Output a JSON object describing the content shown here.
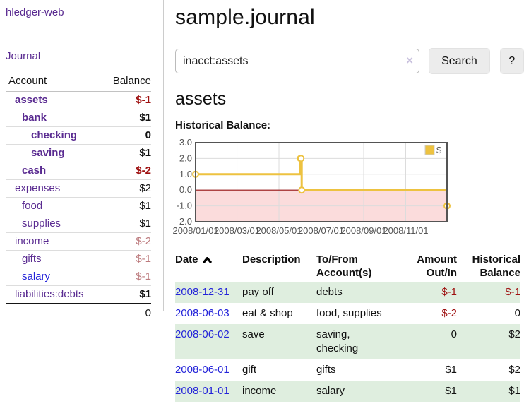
{
  "colors": {
    "purple_link": "#5a2b91",
    "blue_link": "#2323d9",
    "negative_strong": "#9e1010",
    "negative_soft": "#bc7a7d",
    "stripe_green": "#dfeedf",
    "chart_gold": "#edc240"
  },
  "app": {
    "title": "hledger-web",
    "nav_journal": "Journal"
  },
  "sidebar": {
    "header": {
      "account": "Account",
      "balance": "Balance"
    },
    "accounts": [
      {
        "name": "assets",
        "level": 1,
        "bold": true,
        "balance": "$-1",
        "neg": "strong"
      },
      {
        "name": "bank",
        "level": 2,
        "bold": true,
        "balance": "$1"
      },
      {
        "name": "checking",
        "level": 3,
        "bold": true,
        "balance": "0"
      },
      {
        "name": "saving",
        "level": 3,
        "bold": true,
        "balance": "$1"
      },
      {
        "name": "cash",
        "level": 2,
        "bold": true,
        "balance": "$-2",
        "neg": "strong"
      },
      {
        "name": "expenses",
        "level": 1,
        "bold": false,
        "balance": "$2"
      },
      {
        "name": "food",
        "level": 2,
        "bold": false,
        "balance": "$1"
      },
      {
        "name": "supplies",
        "level": 2,
        "bold": false,
        "balance": "$1"
      },
      {
        "name": "income",
        "level": 1,
        "bold": false,
        "balance": "$-2",
        "neg": "soft"
      },
      {
        "name": "gifts",
        "level": 2,
        "bold": false,
        "balance": "$-1",
        "neg": "soft"
      },
      {
        "name": "salary",
        "level": 2,
        "bold": false,
        "balance": "$-1",
        "neg": "soft",
        "link_color": "blue"
      },
      {
        "name": "liabilities:debts",
        "level": 1,
        "bold": false,
        "balance": "$1",
        "balance_bold": true
      }
    ],
    "total": "0"
  },
  "main": {
    "title": "sample.journal",
    "search": {
      "value": "inacct:assets",
      "clear_icon": "×",
      "button_label": "Search",
      "help_label": "?"
    },
    "account_heading": "assets",
    "chart_label": "Historical Balance:"
  },
  "chart_data": {
    "type": "line",
    "step": true,
    "title": "Historical Balance",
    "series": [
      {
        "name": "$",
        "points": [
          [
            "2008-01-01",
            1
          ],
          [
            "2008-06-01",
            2
          ],
          [
            "2008-06-02",
            2
          ],
          [
            "2008-06-03",
            0
          ],
          [
            "2008-12-31",
            -1
          ]
        ]
      }
    ],
    "xlim": [
      "2008-01-01",
      "2008-12-31"
    ],
    "ylim": [
      -2,
      3
    ],
    "ytick_labels": [
      "3.0",
      "2.0",
      "1.0",
      "0.0",
      "-1.0",
      "-2.0"
    ],
    "xticks": [
      {
        "date": "2008-01-01",
        "label": "2008/01/01"
      },
      {
        "date": "2008-03-01",
        "label": "2008/03/01"
      },
      {
        "date": "2008-05-01",
        "label": "2008/05/01"
      },
      {
        "date": "2008-07-01",
        "label": "2008/07/01"
      },
      {
        "date": "2008-09-01",
        "label": "2008/09/01"
      },
      {
        "date": "2008-11-01",
        "label": "2008/11/01"
      }
    ],
    "legend": {
      "label": "$",
      "position": "top-right"
    },
    "grid": true,
    "colors": {
      "line": "#edc240",
      "marker_fill": "#ffffff",
      "negative_region": "#fbdcdc",
      "zero_line": "#991111",
      "border": "#545454",
      "grid": "#dcdcdc",
      "tick_text": "#545454"
    }
  },
  "register": {
    "columns": [
      {
        "lines": [
          "Date"
        ],
        "sort": "asc",
        "align": "left"
      },
      {
        "lines": [
          "Description"
        ],
        "align": "left"
      },
      {
        "lines": [
          "To/From",
          "Account(s)"
        ],
        "align": "left"
      },
      {
        "lines": [
          "Amount",
          "Out/In"
        ],
        "align": "right"
      },
      {
        "lines": [
          "Historical",
          "Balance"
        ],
        "align": "right"
      }
    ],
    "rows": [
      {
        "date": "2008-12-31",
        "description": "pay off",
        "accounts": [
          "debts"
        ],
        "amount": "$-1",
        "amount_neg": true,
        "balance": "$-1",
        "balance_neg": true
      },
      {
        "date": "2008-06-03",
        "description": "eat & shop",
        "accounts": [
          "food, supplies"
        ],
        "amount": "$-2",
        "amount_neg": true,
        "balance": "0",
        "balance_neg": false
      },
      {
        "date": "2008-06-02",
        "description": "save",
        "accounts": [
          "saving,",
          "checking"
        ],
        "amount": "0",
        "amount_neg": false,
        "balance": "$2",
        "balance_neg": false
      },
      {
        "date": "2008-06-01",
        "description": "gift",
        "accounts": [
          "gifts"
        ],
        "amount": "$1",
        "amount_neg": false,
        "balance": "$2",
        "balance_neg": false
      },
      {
        "date": "2008-01-01",
        "description": "income",
        "accounts": [
          "salary"
        ],
        "amount": "$1",
        "amount_neg": false,
        "balance": "$1",
        "balance_neg": false
      }
    ]
  }
}
